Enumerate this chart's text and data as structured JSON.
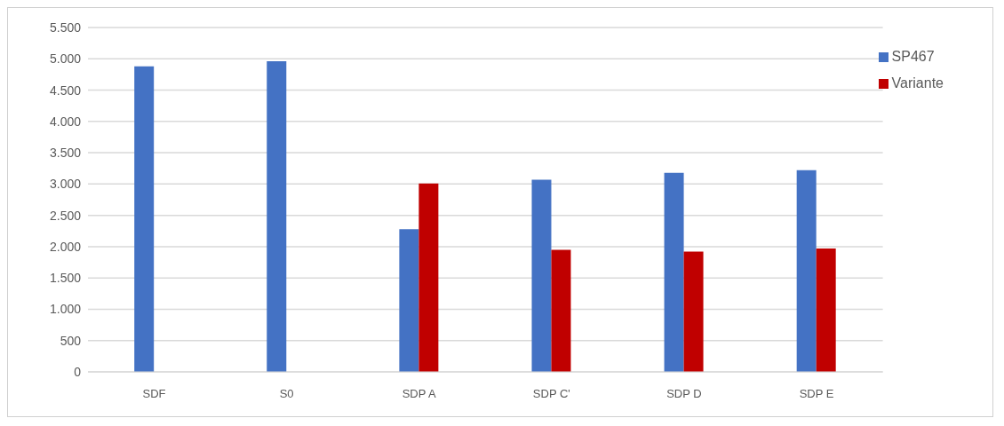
{
  "chart_data": {
    "type": "bar",
    "categories": [
      "SDF",
      "S0",
      "SDP A",
      "SDP C'",
      "SDP D",
      "SDP E"
    ],
    "series": [
      {
        "name": "SP467",
        "color": "#4472c4",
        "values": [
          4880,
          4960,
          2280,
          3070,
          3180,
          3220
        ]
      },
      {
        "name": "Variante",
        "color": "#c00000",
        "values": [
          null,
          null,
          3010,
          1950,
          1920,
          1970
        ]
      }
    ],
    "ylim": [
      0,
      5500
    ],
    "yticks": [
      {
        "value": 0,
        "label": "0"
      },
      {
        "value": 500,
        "label": "500"
      },
      {
        "value": 1000,
        "label": "1.000"
      },
      {
        "value": 1500,
        "label": "1.500"
      },
      {
        "value": 2000,
        "label": "2.000"
      },
      {
        "value": 2500,
        "label": "2.500"
      },
      {
        "value": 3000,
        "label": "3.000"
      },
      {
        "value": 3500,
        "label": "3.500"
      },
      {
        "value": 4000,
        "label": "4.000"
      },
      {
        "value": 4500,
        "label": "4.500"
      },
      {
        "value": 5000,
        "label": "5.000"
      },
      {
        "value": 5500,
        "label": "5.500"
      }
    ],
    "grid": "y",
    "legend": "top right"
  }
}
